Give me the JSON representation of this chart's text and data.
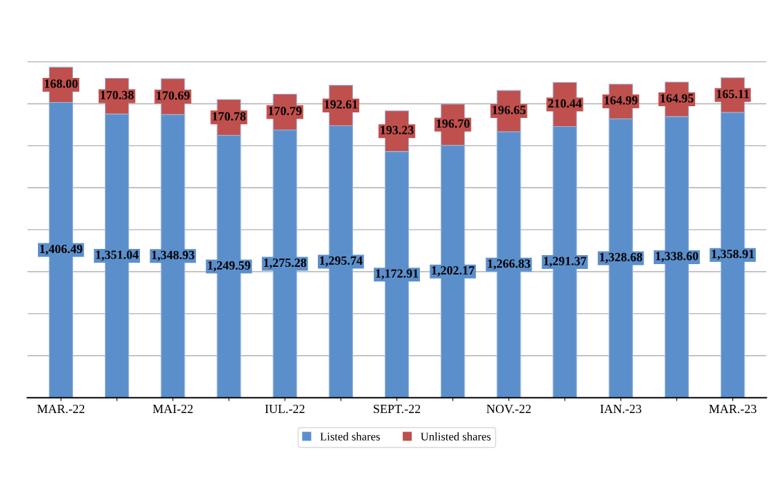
{
  "chart_data": {
    "type": "bar",
    "stacked": true,
    "categories": [
      "MAR.-22",
      null,
      "MAI-22",
      null,
      "IUL.-22",
      null,
      "SEPT.-22",
      null,
      "NOV.-22",
      null,
      "IAN.-23",
      null,
      "MAR.-23"
    ],
    "series": [
      {
        "name": "Listed shares",
        "color": "#5b8fcc",
        "values": [
          1406.49,
          1351.04,
          1348.93,
          1249.59,
          1275.28,
          1295.74,
          1172.91,
          1202.17,
          1266.83,
          1291.37,
          1328.68,
          1338.6,
          1358.91
        ],
        "value_labels": [
          "1,406.49",
          "1,351.04",
          "1,348.93",
          "1,249.59",
          "1,275.28",
          "1,295.74",
          "1,172.91",
          "1,202.17",
          "1,266.83",
          "1,291.37",
          "1,328.68",
          "1,338.60",
          "1,358.91"
        ]
      },
      {
        "name": "Unlisted shares",
        "color": "#c0504d",
        "values": [
          168.0,
          170.38,
          170.69,
          170.78,
          170.79,
          192.61,
          193.23,
          196.7,
          196.65,
          210.44,
          164.99,
          164.95,
          165.11
        ],
        "value_labels": [
          "168.00",
          "170.38",
          "170.69",
          "170.78",
          "170.79",
          "192.61",
          "193.23",
          "196.70",
          "196.65",
          "210.44",
          "164.99",
          "164.95",
          "165.11"
        ]
      }
    ],
    "yticks": [
      {
        "value": 0,
        "label": null
      },
      {
        "value": 200,
        "label": null
      },
      {
        "value": 400,
        "label": null
      },
      {
        "value": 600,
        "label": null
      },
      {
        "value": 800,
        "label": null
      },
      {
        "value": 1000,
        "label": null
      },
      {
        "value": 1200,
        "label": null
      },
      {
        "value": 1400,
        "label": null
      },
      {
        "value": 1600,
        "label": null
      }
    ],
    "tick_labels": "x",
    "grid": "y",
    "legend": "bottom"
  }
}
